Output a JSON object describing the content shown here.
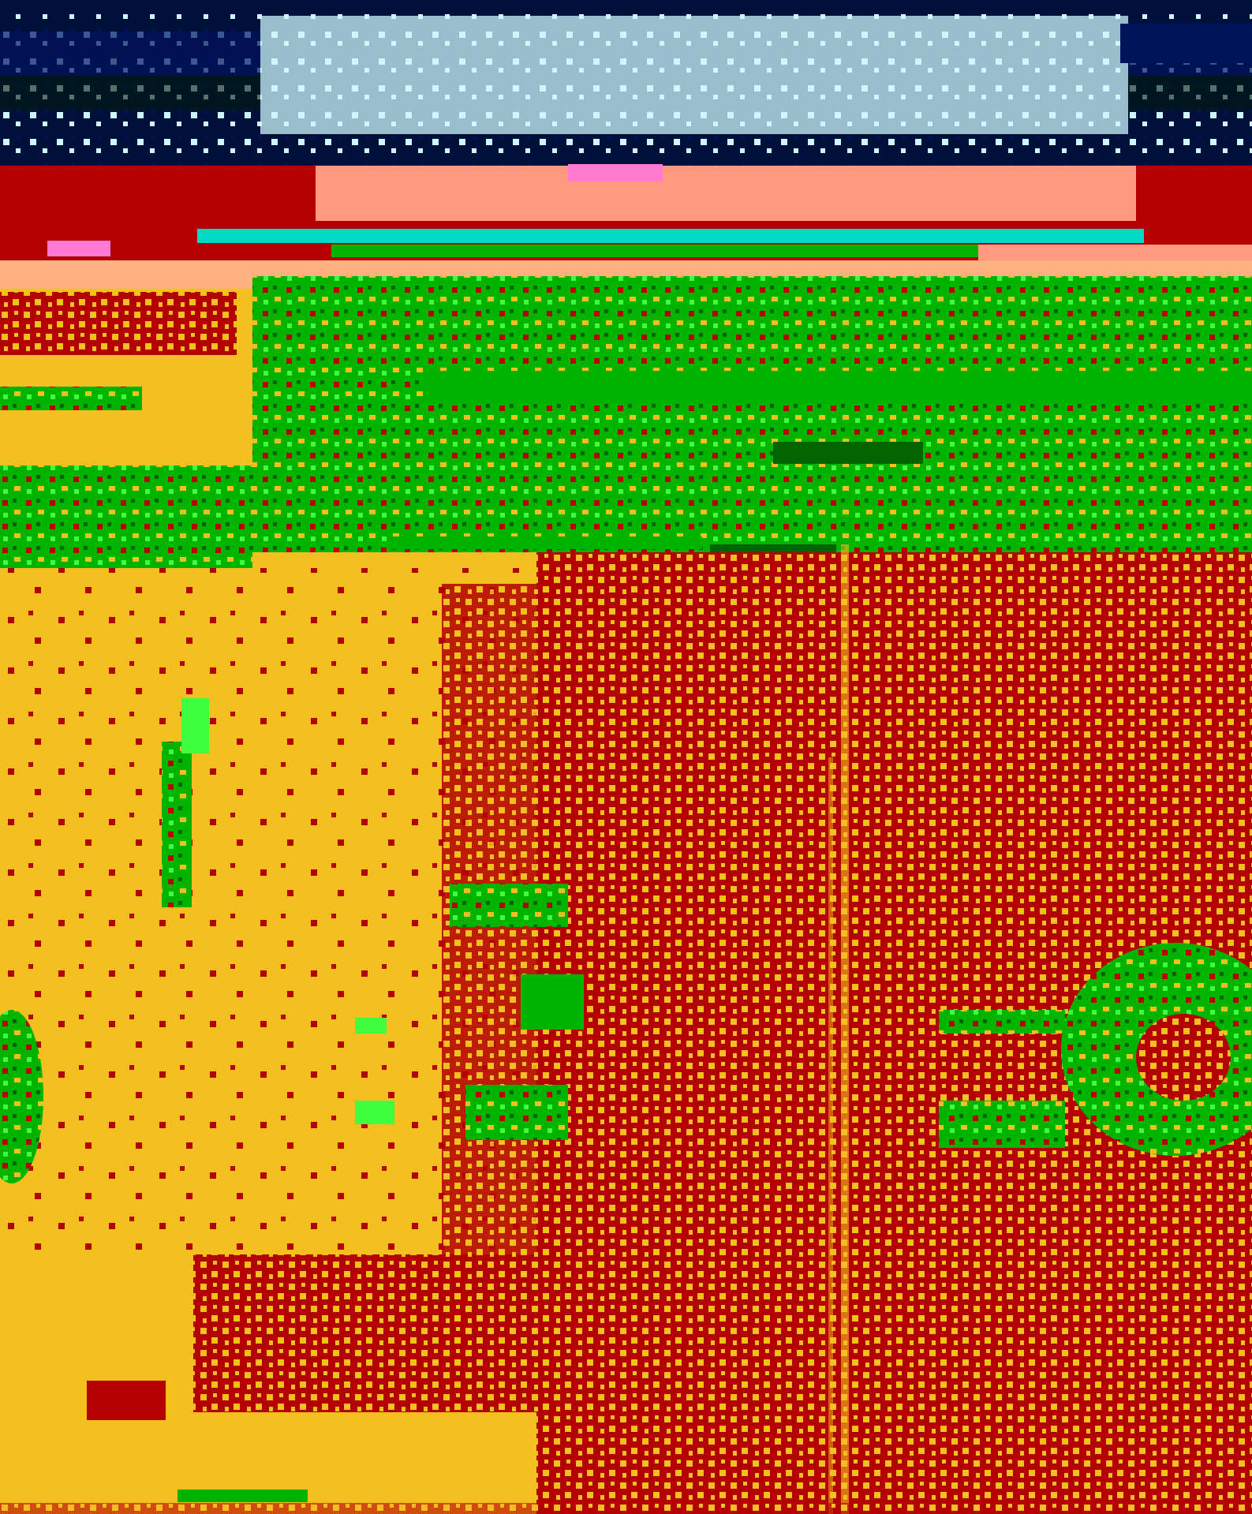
{
  "image": {
    "kind": "heavily posterized, glitch-distorted photograph",
    "visible_text": [],
    "palette": {
      "navy": "#00103a",
      "deep_blue": "#00145e",
      "cyan": "#cdf7ff",
      "teal": "#00d8c8",
      "red": "#b40000",
      "salmon": "#ff9a80",
      "pink": "#ff7ad0",
      "peach": "#ffb080",
      "yellow": "#f4c020",
      "green": "#00b400",
      "lime": "#40ff40",
      "dark_green": "#006400"
    }
  }
}
